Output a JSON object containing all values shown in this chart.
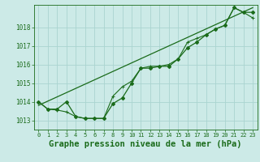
{
  "background_color": "#cceae7",
  "grid_color": "#aad4d0",
  "line_color": "#1a6b1a",
  "xlabel": "Graphe pression niveau de la mer (hPa)",
  "xlabel_fontsize": 7.5,
  "xlim": [
    -0.5,
    23.5
  ],
  "ylim": [
    1012.5,
    1019.2
  ],
  "yticks": [
    1013,
    1014,
    1015,
    1016,
    1017,
    1018
  ],
  "xticks": [
    0,
    1,
    2,
    3,
    4,
    5,
    6,
    7,
    8,
    9,
    10,
    11,
    12,
    13,
    14,
    15,
    16,
    17,
    18,
    19,
    20,
    21,
    22,
    23
  ],
  "line1_x": [
    0,
    1,
    2,
    3,
    4,
    5,
    6,
    7,
    8,
    9,
    10,
    11,
    12,
    13,
    14,
    15,
    16,
    17,
    18,
    19,
    20,
    21,
    22,
    23
  ],
  "line1_y": [
    1014.0,
    1013.6,
    1013.6,
    1014.0,
    1013.2,
    1013.1,
    1013.1,
    1013.1,
    1013.9,
    1014.2,
    1015.0,
    1015.8,
    1015.8,
    1015.9,
    1015.9,
    1016.3,
    1016.9,
    1017.2,
    1017.6,
    1017.9,
    1018.1,
    1019.05,
    1018.8,
    1018.8
  ],
  "line2_x": [
    0,
    23
  ],
  "line2_y": [
    1013.8,
    1019.05
  ],
  "line3_x": [
    0,
    1,
    2,
    3,
    4,
    5,
    6,
    7,
    8,
    9,
    10,
    11,
    12,
    13,
    14,
    15,
    16,
    17,
    18,
    19,
    20,
    21,
    22,
    23
  ],
  "line3_y": [
    1014.0,
    1013.6,
    1013.55,
    1013.45,
    1013.2,
    1013.1,
    1013.1,
    1013.1,
    1014.3,
    1014.8,
    1015.1,
    1015.8,
    1015.9,
    1015.9,
    1016.0,
    1016.3,
    1017.2,
    1017.4,
    1017.6,
    1017.9,
    1018.1,
    1019.05,
    1018.8,
    1018.5
  ]
}
